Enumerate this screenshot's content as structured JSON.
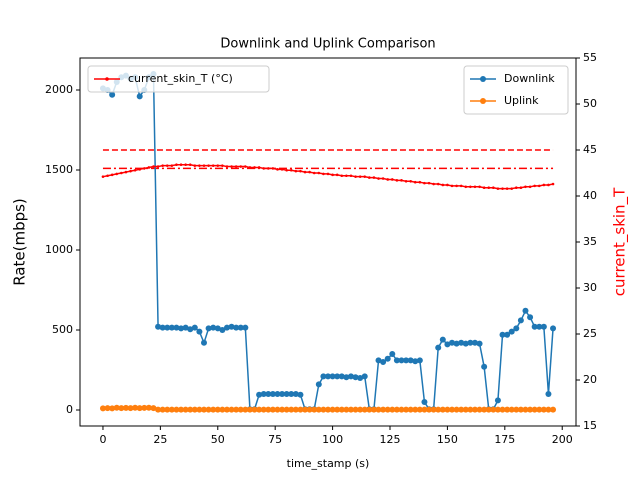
{
  "chart_data": {
    "type": "line",
    "title": "Downlink and Uplink Comparison",
    "xlabel": "time_stamp (s)",
    "ylabel": "Rate(mbps)",
    "y2label": "current_skin_T",
    "x": [
      0,
      2,
      4,
      6,
      8,
      10,
      12,
      14,
      16,
      18,
      20,
      22,
      24,
      26,
      28,
      30,
      32,
      34,
      36,
      38,
      40,
      42,
      44,
      46,
      48,
      50,
      52,
      54,
      56,
      58,
      60,
      62,
      64,
      66,
      68,
      70,
      72,
      74,
      76,
      78,
      80,
      82,
      84,
      86,
      88,
      90,
      92,
      94,
      96,
      98,
      100,
      102,
      104,
      106,
      108,
      110,
      112,
      114,
      116,
      118,
      120,
      122,
      124,
      126,
      128,
      130,
      132,
      134,
      136,
      138,
      140,
      142,
      144,
      146,
      148,
      150,
      152,
      154,
      156,
      158,
      160,
      162,
      164,
      166,
      168,
      170,
      172,
      174,
      176,
      178,
      180,
      182,
      184,
      186,
      188,
      190,
      192,
      194,
      196
    ],
    "series": [
      {
        "name": "Downlink",
        "color": "#1f77b4",
        "marker": "o",
        "values": [
          2010,
          2000,
          1970,
          2050,
          2080,
          2090,
          2070,
          2080,
          1960,
          2000,
          2080,
          2100,
          520,
          515,
          515,
          515,
          515,
          510,
          515,
          505,
          515,
          490,
          420,
          510,
          515,
          510,
          500,
          515,
          520,
          515,
          515,
          515,
          5,
          5,
          95,
          100,
          100,
          100,
          100,
          100,
          100,
          100,
          100,
          95,
          5,
          5,
          5,
          160,
          210,
          210,
          210,
          210,
          210,
          205,
          210,
          205,
          200,
          210,
          5,
          5,
          310,
          300,
          320,
          350,
          310,
          310,
          310,
          310,
          305,
          310,
          50,
          5,
          5,
          390,
          440,
          410,
          420,
          415,
          420,
          415,
          420,
          420,
          415,
          270,
          5,
          5,
          60,
          470,
          470,
          490,
          510,
          560,
          620,
          580,
          520,
          520,
          520,
          100,
          510
        ]
      },
      {
        "name": "Uplink",
        "color": "#ff7f0e",
        "marker": "o",
        "values": [
          10,
          12,
          10,
          14,
          12,
          13,
          12,
          14,
          12,
          13,
          14,
          12,
          2,
          2,
          2,
          2,
          2,
          2,
          2,
          2,
          2,
          2,
          2,
          2,
          2,
          2,
          2,
          2,
          2,
          2,
          2,
          2,
          2,
          2,
          2,
          2,
          2,
          2,
          2,
          2,
          2,
          2,
          2,
          2,
          2,
          2,
          2,
          2,
          2,
          2,
          2,
          2,
          2,
          2,
          2,
          2,
          2,
          2,
          2,
          2,
          2,
          2,
          2,
          2,
          2,
          2,
          2,
          2,
          2,
          2,
          2,
          2,
          2,
          2,
          2,
          2,
          2,
          2,
          2,
          2,
          2,
          2,
          2,
          2,
          2,
          2,
          2,
          2,
          2,
          2,
          2,
          2,
          2,
          2,
          2,
          2,
          2,
          2,
          2
        ]
      },
      {
        "name": "current_skin_T (°C)",
        "color": "#ff0000",
        "marker": "*",
        "axis": "y2",
        "values": [
          42.1,
          42.2,
          42.3,
          42.4,
          42.5,
          42.6,
          42.7,
          42.8,
          42.9,
          43.0,
          43.1,
          43.2,
          43.2,
          43.3,
          43.3,
          43.3,
          43.4,
          43.4,
          43.4,
          43.4,
          43.3,
          43.3,
          43.3,
          43.3,
          43.3,
          43.3,
          43.3,
          43.2,
          43.2,
          43.2,
          43.2,
          43.2,
          43.1,
          43.1,
          43.1,
          43.0,
          43.0,
          43.0,
          42.9,
          42.9,
          42.8,
          42.8,
          42.7,
          42.7,
          42.6,
          42.6,
          42.5,
          42.5,
          42.4,
          42.4,
          42.3,
          42.3,
          42.2,
          42.2,
          42.2,
          42.1,
          42.1,
          42.1,
          42.0,
          42.0,
          41.9,
          41.9,
          41.8,
          41.8,
          41.7,
          41.7,
          41.6,
          41.6,
          41.5,
          41.5,
          41.4,
          41.4,
          41.3,
          41.3,
          41.2,
          41.2,
          41.1,
          41.1,
          41.1,
          41.0,
          41.0,
          41.0,
          41.0,
          40.9,
          40.9,
          40.9,
          40.8,
          40.8,
          40.8,
          40.8,
          40.9,
          40.9,
          41.0,
          41.0,
          41.1,
          41.1,
          41.2,
          41.2,
          41.3
        ]
      }
    ],
    "hlines": [
      {
        "value": 45,
        "style": "dashed",
        "axis": "y2",
        "color": "#ff0000"
      },
      {
        "value": 43,
        "style": "dashdot",
        "axis": "y2",
        "color": "#ff0000"
      }
    ],
    "xlim": [
      -10,
      206
    ],
    "xticks": [
      0,
      25,
      50,
      75,
      100,
      125,
      150,
      175,
      200
    ],
    "ylim": [
      -100,
      2200
    ],
    "yticks": [
      0,
      500,
      1000,
      1500,
      2000
    ],
    "y2lim": [
      15,
      55
    ],
    "y2ticks": [
      15,
      20,
      25,
      30,
      35,
      40,
      45,
      50,
      55
    ],
    "legend": "upper right",
    "y2legend": "upper left"
  }
}
